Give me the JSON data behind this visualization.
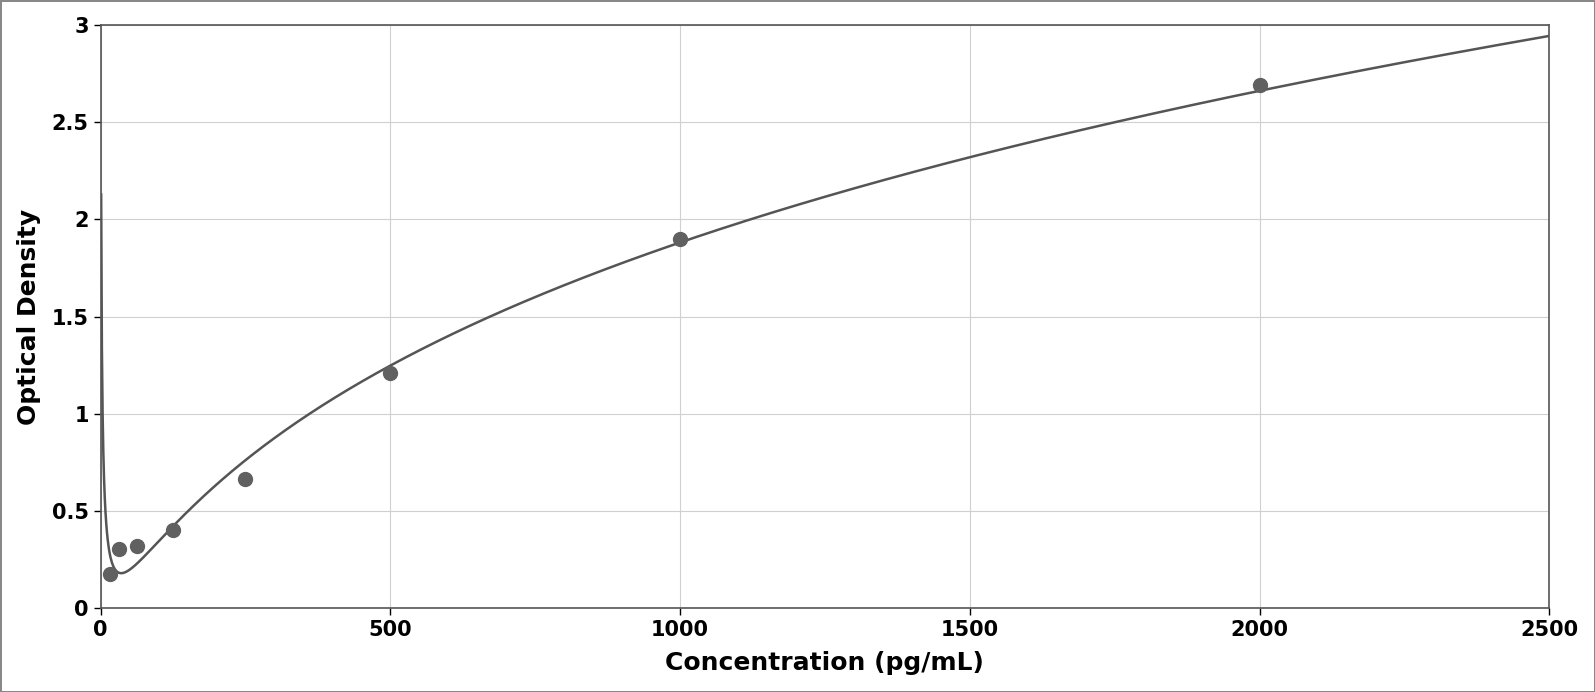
{
  "x_data": [
    15.625,
    31.25,
    62.5,
    125,
    250,
    500,
    1000,
    2000
  ],
  "y_data": [
    0.175,
    0.305,
    0.32,
    0.405,
    0.665,
    1.21,
    1.9,
    2.69
  ],
  "xlabel": "Concentration (pg/mL)",
  "ylabel": "Optical Density",
  "xlim": [
    0,
    2500
  ],
  "ylim": [
    0,
    3.0
  ],
  "xticks": [
    0,
    500,
    1000,
    1500,
    2000,
    2500
  ],
  "yticks": [
    0,
    0.5,
    1.0,
    1.5,
    2.0,
    2.5,
    3.0
  ],
  "marker_color": "#606060",
  "line_color": "#555555",
  "background_color": "#ffffff",
  "plot_bg_color": "#ffffff",
  "grid_color": "#d0d0d0",
  "marker_size": 10,
  "line_width": 1.8,
  "xlabel_fontsize": 18,
  "ylabel_fontsize": 18,
  "tick_fontsize": 15,
  "xlabel_fontweight": "bold",
  "ylabel_fontweight": "bold",
  "border_color": "#555555",
  "figure_border_color": "#888888"
}
